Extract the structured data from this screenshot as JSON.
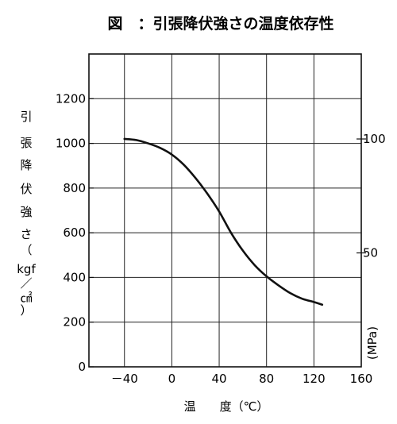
{
  "chart_data": {
    "type": "line",
    "title": "図　：引張降伏強さの温度依存性",
    "xlabel": "温　　度（℃）",
    "ylabel": [
      "引",
      "張",
      "降",
      "伏",
      "強",
      "さ",
      "（",
      "kgf",
      "／",
      "㎠",
      "）"
    ],
    "y2label": "(MPa)",
    "xlim": [
      -70,
      160
    ],
    "ylim": [
      0,
      1400
    ],
    "x_ticks": [
      -40,
      0,
      40,
      80,
      120,
      160
    ],
    "x_tick_labels": [
      "－40",
      "0",
      "40",
      "80",
      "120",
      "160"
    ],
    "y_ticks": [
      0,
      200,
      400,
      600,
      800,
      1000,
      1200
    ],
    "y_tick_labels": [
      "0",
      "200",
      "400",
      "600",
      "800",
      "1000",
      "1200"
    ],
    "y2_ticks": [
      50,
      100
    ],
    "y2_tick_labels": [
      "50",
      "100"
    ],
    "grid": true,
    "series": [
      {
        "x": [
          -40,
          -30,
          -20,
          -10,
          0,
          10,
          20,
          30,
          40,
          50,
          60,
          70,
          80,
          90,
          100,
          110,
          120,
          127
        ],
        "y": [
          1020,
          1015,
          1000,
          980,
          950,
          905,
          845,
          775,
          695,
          600,
          520,
          455,
          405,
          365,
          330,
          305,
          290,
          278
        ]
      }
    ]
  }
}
